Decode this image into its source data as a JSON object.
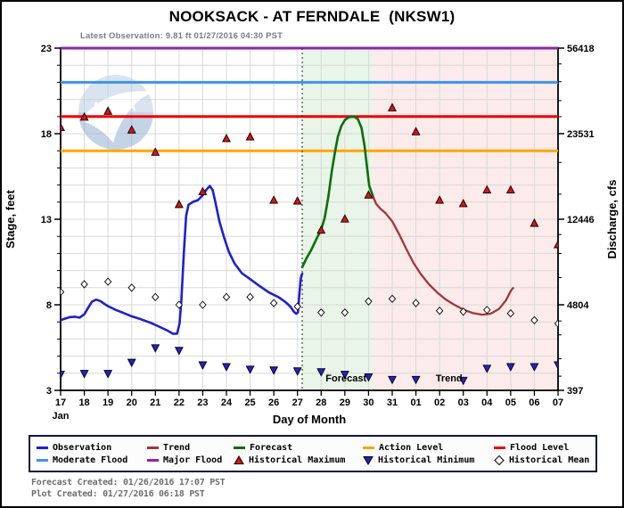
{
  "header": {
    "title": "NOOKSACK - AT FERNDALE  (NKSW1)",
    "latest_observation": "Latest Observation: 9.81 ft 01/27/2016 04:30 PST"
  },
  "watermark": {
    "text": "NOAA"
  },
  "chart_data": {
    "type": "line",
    "title": "NOOKSACK - AT FERNDALE  (NKSW1)",
    "xlabel": "Day of Month",
    "ylabel_left": "Stage, feet",
    "ylabel_right": "Discharge, cfs",
    "x_axis": {
      "month_label": "Jan",
      "tick_labels": [
        "17",
        "18",
        "19",
        "20",
        "21",
        "22",
        "23",
        "24",
        "25",
        "26",
        "27",
        "28",
        "29",
        "30",
        "31",
        "01",
        "02",
        "03",
        "04",
        "05",
        "06",
        "07"
      ]
    },
    "y_axis_left": {
      "min": 3,
      "max": 23,
      "major_ticks": [
        3,
        8,
        13,
        18,
        23
      ],
      "minor_step": 1
    },
    "y_axis_right": {
      "major_ticks": [
        {
          "stage": 3,
          "label": "397",
          "value": 397
        },
        {
          "stage": 8,
          "label": "4804",
          "value": 4804
        },
        {
          "stage": 13,
          "label": "12446",
          "value": 12446
        },
        {
          "stage": 18,
          "label": "23531",
          "value": 23531
        },
        {
          "stage": 23,
          "label": "56418",
          "value": 56418
        }
      ],
      "minor_tick_discharges": [
        600,
        1000,
        2000,
        3000,
        6500,
        8500,
        10500,
        15000,
        19000,
        28000,
        33000,
        40000,
        48000
      ]
    },
    "reference_lines": [
      {
        "label": "Action Level",
        "stage": 17,
        "color": "#ffa500"
      },
      {
        "label": "Flood Level",
        "stage": 19,
        "color": "#ee0000"
      },
      {
        "label": "Moderate Flood",
        "stage": 21,
        "color": "#3d95e8"
      },
      {
        "label": "Major Flood",
        "stage": 23,
        "color": "#8e24aa"
      }
    ],
    "now_line": {
      "x": 10.2
    },
    "regions": [
      {
        "label": "Forecast",
        "from": 10.2,
        "to": 13.2,
        "color": "#e8f5e8",
        "label_x": 12.05,
        "label_y": 3.72
      },
      {
        "label": "Trend",
        "from": 13.2,
        "to": 21.0,
        "color": "#fcebeb",
        "label_x": 16.4,
        "label_y": 3.72
      }
    ],
    "series": [
      {
        "name": "Observation",
        "color": "#1f1fd0",
        "width": 2.6,
        "points": [
          [
            0.0,
            7.1
          ],
          [
            0.2,
            7.2
          ],
          [
            0.4,
            7.28
          ],
          [
            0.6,
            7.3
          ],
          [
            0.8,
            7.25
          ],
          [
            1.0,
            7.45
          ],
          [
            1.15,
            7.8
          ],
          [
            1.32,
            8.18
          ],
          [
            1.5,
            8.3
          ],
          [
            1.68,
            8.22
          ],
          [
            1.85,
            8.05
          ],
          [
            2.0,
            7.92
          ],
          [
            2.3,
            7.72
          ],
          [
            2.6,
            7.55
          ],
          [
            3.0,
            7.33
          ],
          [
            3.4,
            7.15
          ],
          [
            3.8,
            6.95
          ],
          [
            4.2,
            6.7
          ],
          [
            4.5,
            6.5
          ],
          [
            4.75,
            6.3
          ],
          [
            4.92,
            6.32
          ],
          [
            5.02,
            6.9
          ],
          [
            5.1,
            8.3
          ],
          [
            5.2,
            11.0
          ],
          [
            5.3,
            13.2
          ],
          [
            5.4,
            13.85
          ],
          [
            5.6,
            14.02
          ],
          [
            5.8,
            14.12
          ],
          [
            6.0,
            14.4
          ],
          [
            6.15,
            14.72
          ],
          [
            6.3,
            14.95
          ],
          [
            6.42,
            14.7
          ],
          [
            6.55,
            13.9
          ],
          [
            6.7,
            12.9
          ],
          [
            6.9,
            11.95
          ],
          [
            7.1,
            11.1
          ],
          [
            7.35,
            10.4
          ],
          [
            7.65,
            9.85
          ],
          [
            8.0,
            9.5
          ],
          [
            8.4,
            9.1
          ],
          [
            8.8,
            8.72
          ],
          [
            9.2,
            8.45
          ],
          [
            9.5,
            8.15
          ],
          [
            9.7,
            7.9
          ],
          [
            9.85,
            7.6
          ],
          [
            9.95,
            7.48
          ],
          [
            10.02,
            7.55
          ],
          [
            10.08,
            8.6
          ],
          [
            10.13,
            9.45
          ],
          [
            10.17,
            9.72
          ],
          [
            10.2,
            9.81
          ]
        ]
      },
      {
        "name": "Forecast",
        "color": "#0a6e0a",
        "width": 2.6,
        "points": [
          [
            10.2,
            10.2
          ],
          [
            10.38,
            10.72
          ],
          [
            10.58,
            11.2
          ],
          [
            10.8,
            11.85
          ],
          [
            11.0,
            12.4
          ],
          [
            11.15,
            13.1
          ],
          [
            11.3,
            14.3
          ],
          [
            11.45,
            15.8
          ],
          [
            11.58,
            16.9
          ],
          [
            11.7,
            17.8
          ],
          [
            11.85,
            18.45
          ],
          [
            12.0,
            18.8
          ],
          [
            12.18,
            18.97
          ],
          [
            12.38,
            19.0
          ],
          [
            12.55,
            18.85
          ],
          [
            12.7,
            18.35
          ],
          [
            12.83,
            17.3
          ],
          [
            12.93,
            16.1
          ],
          [
            13.03,
            14.95
          ],
          [
            13.2,
            14.3
          ]
        ]
      },
      {
        "name": "Trend",
        "color": "#a23636",
        "width": 2.3,
        "points": [
          [
            13.2,
            14.3
          ],
          [
            13.32,
            13.9
          ],
          [
            13.5,
            13.62
          ],
          [
            13.72,
            13.35
          ],
          [
            14.0,
            12.88
          ],
          [
            14.3,
            12.1
          ],
          [
            14.6,
            11.25
          ],
          [
            14.9,
            10.45
          ],
          [
            15.2,
            9.8
          ],
          [
            15.55,
            9.2
          ],
          [
            15.9,
            8.72
          ],
          [
            16.25,
            8.32
          ],
          [
            16.6,
            8.02
          ],
          [
            17.0,
            7.72
          ],
          [
            17.4,
            7.52
          ],
          [
            17.8,
            7.42
          ],
          [
            18.15,
            7.48
          ],
          [
            18.5,
            7.75
          ],
          [
            18.8,
            8.25
          ],
          [
            19.0,
            8.8
          ],
          [
            19.1,
            8.98
          ]
        ]
      }
    ],
    "markers": [
      {
        "name": "Historical Maximum",
        "shape": "triangle-up",
        "color": "#dd1111",
        "points": [
          [
            0,
            18.35
          ],
          [
            1,
            18.95
          ],
          [
            2,
            19.3
          ],
          [
            3,
            18.2
          ],
          [
            4,
            16.9
          ],
          [
            5,
            13.85
          ],
          [
            6,
            14.6
          ],
          [
            7,
            17.7
          ],
          [
            8,
            17.8
          ],
          [
            9,
            14.1
          ],
          [
            10,
            14.05
          ],
          [
            11,
            12.35
          ],
          [
            12,
            13.0
          ],
          [
            13,
            14.4
          ],
          [
            14,
            19.5
          ],
          [
            15,
            18.1
          ],
          [
            16,
            14.1
          ],
          [
            17,
            13.9
          ],
          [
            18,
            14.7
          ],
          [
            19,
            14.7
          ],
          [
            20,
            12.75
          ],
          [
            21,
            11.5
          ]
        ]
      },
      {
        "name": "Historical Minimum",
        "shape": "triangle-down",
        "color": "#2222cc",
        "points": [
          [
            0,
            3.95
          ],
          [
            1,
            4.0
          ],
          [
            2,
            4.0
          ],
          [
            3,
            4.65
          ],
          [
            4,
            5.5
          ],
          [
            5,
            5.35
          ],
          [
            6,
            4.5
          ],
          [
            7,
            4.4
          ],
          [
            8,
            4.25
          ],
          [
            9,
            4.2
          ],
          [
            10,
            4.15
          ],
          [
            11,
            4.1
          ],
          [
            12,
            3.95
          ],
          [
            13,
            3.8
          ],
          [
            14,
            3.65
          ],
          [
            15,
            3.65
          ],
          [
            17,
            3.6
          ],
          [
            18,
            4.3
          ],
          [
            19,
            4.4
          ],
          [
            20,
            4.4
          ],
          [
            21,
            4.5
          ]
        ]
      },
      {
        "name": "Historical Mean",
        "shape": "diamond",
        "color": "#ffffff",
        "points": [
          [
            0,
            8.75
          ],
          [
            1,
            9.2
          ],
          [
            2,
            9.35
          ],
          [
            3,
            9.0
          ],
          [
            4,
            8.45
          ],
          [
            5,
            8.0
          ],
          [
            6,
            8.0
          ],
          [
            7,
            8.45
          ],
          [
            8,
            8.45
          ],
          [
            9,
            8.1
          ],
          [
            10,
            7.9
          ],
          [
            11,
            7.55
          ],
          [
            12,
            7.55
          ],
          [
            13,
            8.2
          ],
          [
            14,
            8.35
          ],
          [
            15,
            8.1
          ],
          [
            16,
            7.65
          ],
          [
            17,
            7.6
          ],
          [
            18,
            7.7
          ],
          [
            19,
            7.5
          ],
          [
            20,
            7.1
          ],
          [
            21,
            6.9
          ]
        ]
      }
    ]
  },
  "legend": {
    "rows": [
      [
        {
          "label": "Observation",
          "swatch": "line",
          "color": "#1f1fd0"
        },
        {
          "label": "Trend",
          "swatch": "line",
          "color": "#a23636"
        },
        {
          "label": "Forecast",
          "swatch": "line",
          "color": "#0a6e0a"
        },
        {
          "label": "Action Level",
          "swatch": "line",
          "color": "#ffa500"
        },
        {
          "label": "Flood Level",
          "swatch": "line",
          "color": "#ee0000"
        }
      ],
      [
        {
          "label": "Moderate Flood",
          "swatch": "line",
          "color": "#3d95e8"
        },
        {
          "label": "Major Flood",
          "swatch": "line",
          "color": "#8e24aa"
        },
        {
          "label": "Historical Maximum",
          "swatch": "triangle-up",
          "color": "#dd1111"
        },
        {
          "label": "Historical Minimum",
          "swatch": "triangle-down",
          "color": "#2222cc"
        },
        {
          "label": "Historical Mean",
          "swatch": "diamond",
          "color": "#ffffff"
        }
      ]
    ]
  },
  "footer": {
    "forecast_created": "Forecast Created: 01/26/2016 17:07 PST",
    "plot_created": "Plot Created: 01/27/2016 06:18 PST"
  }
}
